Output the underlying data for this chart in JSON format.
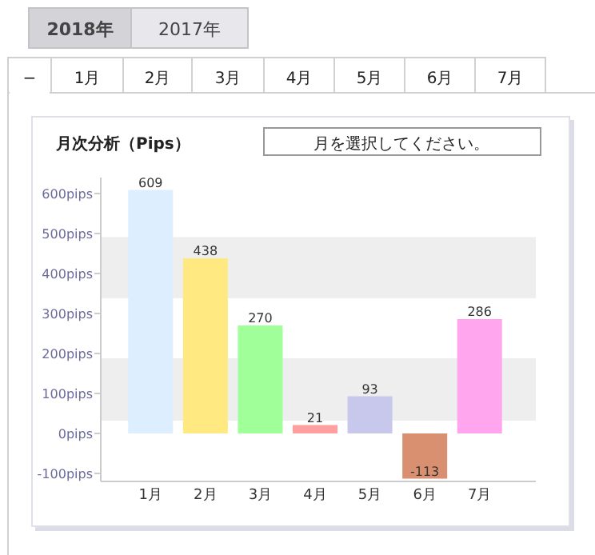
{
  "chart_data": {
    "type": "bar",
    "title": "月次分析（Pips）",
    "categories": [
      "1月",
      "2月",
      "3月",
      "4月",
      "5月",
      "6月",
      "7月"
    ],
    "values": [
      609,
      438,
      270,
      21,
      93,
      -113,
      286
    ],
    "colors": [
      "#ddeeff",
      "#ffe980",
      "#a0ff98",
      "#ff9f9f",
      "#c8c8ec",
      "#d99070",
      "#ffa6ee"
    ],
    "ylim": [
      -120,
      640
    ],
    "yticks": [
      {
        "value": -100,
        "label": "-100pips"
      },
      {
        "value": 0,
        "label": "0pips"
      },
      {
        "value": 100,
        "label": "100pips"
      },
      {
        "value": 200,
        "label": "200pips"
      },
      {
        "value": 300,
        "label": "300pips"
      },
      {
        "value": 400,
        "label": "400pips"
      },
      {
        "value": 500,
        "label": "500pips"
      },
      {
        "value": 600,
        "label": "600pips"
      }
    ],
    "bands": [
      {
        "axis": "y",
        "from": 32,
        "to": 188,
        "color": "#eeeeee"
      },
      {
        "axis": "y",
        "from": 338,
        "to": 491,
        "color": "#eeeeee"
      }
    ],
    "data_labels": true,
    "grid": false,
    "annotations": [
      "2018年",
      "2017年",
      "−",
      "1月",
      "2月",
      "3月",
      "4月",
      "5月",
      "6月",
      "7月",
      "月を選択してください。"
    ]
  }
}
